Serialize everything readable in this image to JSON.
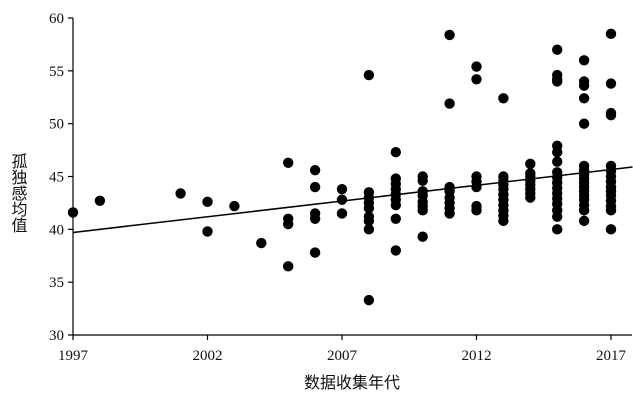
{
  "chart_data": {
    "type": "scatter",
    "title": "",
    "xlabel": "数据收集年代",
    "ylabel": "孤独感均值",
    "xlim": [
      1997,
      2017
    ],
    "ylim": [
      30,
      60
    ],
    "xticks": [
      "1997",
      "2002",
      "2007",
      "2012",
      "2017"
    ],
    "yticks": [
      "30",
      "35",
      "40",
      "45",
      "50",
      "55",
      "60"
    ],
    "grid": false,
    "legend": "none",
    "point_color": "#000000",
    "trendline": {
      "x": [
        1997,
        2017.8
      ],
      "y": [
        39.7,
        45.9
      ]
    },
    "points": [
      [
        1997,
        41.6
      ],
      [
        1998,
        42.7
      ],
      [
        2001,
        43.4
      ],
      [
        2002,
        42.6
      ],
      [
        2002,
        39.8
      ],
      [
        2003,
        42.2
      ],
      [
        2004,
        38.7
      ],
      [
        2005,
        46.3
      ],
      [
        2005,
        41.0
      ],
      [
        2005,
        40.5
      ],
      [
        2005,
        36.5
      ],
      [
        2006,
        45.6
      ],
      [
        2006,
        44.0
      ],
      [
        2006,
        41.5
      ],
      [
        2006,
        41.0
      ],
      [
        2006,
        37.8
      ],
      [
        2007,
        43.8
      ],
      [
        2007,
        42.8
      ],
      [
        2007,
        41.5
      ],
      [
        2008,
        54.6
      ],
      [
        2008,
        43.5
      ],
      [
        2008,
        43.0
      ],
      [
        2008,
        42.5
      ],
      [
        2008,
        42.0
      ],
      [
        2008,
        41.2
      ],
      [
        2008,
        40.8
      ],
      [
        2008,
        40.0
      ],
      [
        2008,
        33.3
      ],
      [
        2009,
        47.3
      ],
      [
        2009,
        44.8
      ],
      [
        2009,
        44.3
      ],
      [
        2009,
        43.8
      ],
      [
        2009,
        43.3
      ],
      [
        2009,
        42.8
      ],
      [
        2009,
        42.3
      ],
      [
        2009,
        41.0
      ],
      [
        2009,
        38.0
      ],
      [
        2010,
        45.0
      ],
      [
        2010,
        44.6
      ],
      [
        2010,
        43.6
      ],
      [
        2010,
        43.2
      ],
      [
        2010,
        42.6
      ],
      [
        2010,
        42.2
      ],
      [
        2010,
        41.8
      ],
      [
        2010,
        39.3
      ],
      [
        2011,
        58.4
      ],
      [
        2011,
        51.9
      ],
      [
        2011,
        44.0
      ],
      [
        2011,
        43.6
      ],
      [
        2011,
        43.0
      ],
      [
        2011,
        42.5
      ],
      [
        2011,
        42.0
      ],
      [
        2011,
        41.5
      ],
      [
        2012,
        55.4
      ],
      [
        2012,
        54.2
      ],
      [
        2012,
        45.0
      ],
      [
        2012,
        44.5
      ],
      [
        2012,
        44.0
      ],
      [
        2012,
        42.2
      ],
      [
        2012,
        41.8
      ],
      [
        2013,
        52.4
      ],
      [
        2013,
        45.0
      ],
      [
        2013,
        44.6
      ],
      [
        2013,
        44.2
      ],
      [
        2013,
        43.8
      ],
      [
        2013,
        43.3
      ],
      [
        2013,
        42.8
      ],
      [
        2013,
        42.3
      ],
      [
        2013,
        41.8
      ],
      [
        2013,
        41.3
      ],
      [
        2013,
        40.8
      ],
      [
        2014,
        46.2
      ],
      [
        2014,
        45.3
      ],
      [
        2014,
        45.0
      ],
      [
        2014,
        44.6
      ],
      [
        2014,
        44.2
      ],
      [
        2014,
        43.8
      ],
      [
        2014,
        43.4
      ],
      [
        2014,
        43.0
      ],
      [
        2015,
        57.0
      ],
      [
        2015,
        54.6
      ],
      [
        2015,
        54.2
      ],
      [
        2015,
        54.0
      ],
      [
        2015,
        47.9
      ],
      [
        2015,
        47.3
      ],
      [
        2015,
        46.4
      ],
      [
        2015,
        45.4
      ],
      [
        2015,
        44.9
      ],
      [
        2015,
        44.4
      ],
      [
        2015,
        43.9
      ],
      [
        2015,
        43.4
      ],
      [
        2015,
        42.9
      ],
      [
        2015,
        42.4
      ],
      [
        2015,
        41.8
      ],
      [
        2015,
        41.2
      ],
      [
        2015,
        40.0
      ],
      [
        2016,
        56.0
      ],
      [
        2016,
        54.0
      ],
      [
        2016,
        53.6
      ],
      [
        2016,
        52.4
      ],
      [
        2016,
        50.0
      ],
      [
        2016,
        46.0
      ],
      [
        2016,
        45.6
      ],
      [
        2016,
        45.2
      ],
      [
        2016,
        44.8
      ],
      [
        2016,
        44.4
      ],
      [
        2016,
        44.0
      ],
      [
        2016,
        43.6
      ],
      [
        2016,
        43.2
      ],
      [
        2016,
        42.8
      ],
      [
        2016,
        42.3
      ],
      [
        2016,
        41.8
      ],
      [
        2016,
        40.8
      ],
      [
        2017,
        58.5
      ],
      [
        2017,
        53.8
      ],
      [
        2017,
        51.0
      ],
      [
        2017,
        50.8
      ],
      [
        2017,
        46.0
      ],
      [
        2017,
        45.5
      ],
      [
        2017,
        45.0
      ],
      [
        2017,
        44.5
      ],
      [
        2017,
        44.0
      ],
      [
        2017,
        43.6
      ],
      [
        2017,
        43.2
      ],
      [
        2017,
        42.7
      ],
      [
        2017,
        42.2
      ],
      [
        2017,
        41.8
      ],
      [
        2017,
        40.0
      ]
    ]
  }
}
